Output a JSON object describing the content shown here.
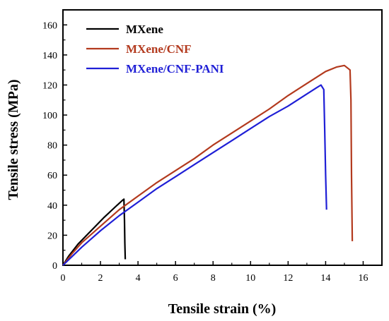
{
  "chart_data": {
    "type": "line",
    "xlabel": "Tensile strain (%)",
    "ylabel": "Tensile stress (MPa)",
    "xlim": [
      0,
      17
    ],
    "ylim": [
      0,
      170
    ],
    "xticks": [
      0,
      2,
      4,
      6,
      8,
      10,
      12,
      14,
      16
    ],
    "yticks": [
      0,
      20,
      40,
      60,
      80,
      100,
      120,
      140,
      160
    ],
    "grid": false,
    "legend_position": "top-left",
    "series": [
      {
        "name": "MXene",
        "color": "#000000",
        "points": [
          [
            0,
            0
          ],
          [
            0.3,
            6
          ],
          [
            0.8,
            14
          ],
          [
            1.5,
            23
          ],
          [
            2.2,
            32
          ],
          [
            2.8,
            39
          ],
          [
            3.15,
            43
          ],
          [
            3.25,
            44
          ],
          [
            3.28,
            30
          ],
          [
            3.3,
            15
          ],
          [
            3.32,
            4
          ]
        ]
      },
      {
        "name": "MXene/CNF",
        "color": "#b33a1e",
        "points": [
          [
            0,
            0
          ],
          [
            0.5,
            8
          ],
          [
            1,
            15
          ],
          [
            2,
            26
          ],
          [
            3,
            37
          ],
          [
            4,
            46
          ],
          [
            5,
            55
          ],
          [
            6,
            63
          ],
          [
            7,
            71
          ],
          [
            8,
            80
          ],
          [
            9,
            88
          ],
          [
            10,
            96
          ],
          [
            11,
            104
          ],
          [
            12,
            113
          ],
          [
            13,
            121
          ],
          [
            14,
            129
          ],
          [
            14.6,
            132
          ],
          [
            15.0,
            133
          ],
          [
            15.3,
            130
          ],
          [
            15.35,
            110
          ],
          [
            15.38,
            60
          ],
          [
            15.42,
            16
          ]
        ]
      },
      {
        "name": "MXene/CNF-PANI",
        "color": "#1f1fd6",
        "points": [
          [
            0,
            0
          ],
          [
            0.5,
            6
          ],
          [
            1,
            12
          ],
          [
            2,
            23
          ],
          [
            3,
            33
          ],
          [
            4,
            42
          ],
          [
            5,
            51
          ],
          [
            6,
            59
          ],
          [
            7,
            67
          ],
          [
            8,
            75
          ],
          [
            9,
            83
          ],
          [
            10,
            91
          ],
          [
            11,
            99
          ],
          [
            12,
            106
          ],
          [
            13,
            114
          ],
          [
            13.5,
            118
          ],
          [
            13.75,
            120
          ],
          [
            13.9,
            117
          ],
          [
            13.95,
            90
          ],
          [
            14.0,
            60
          ],
          [
            14.05,
            37
          ]
        ]
      }
    ]
  }
}
